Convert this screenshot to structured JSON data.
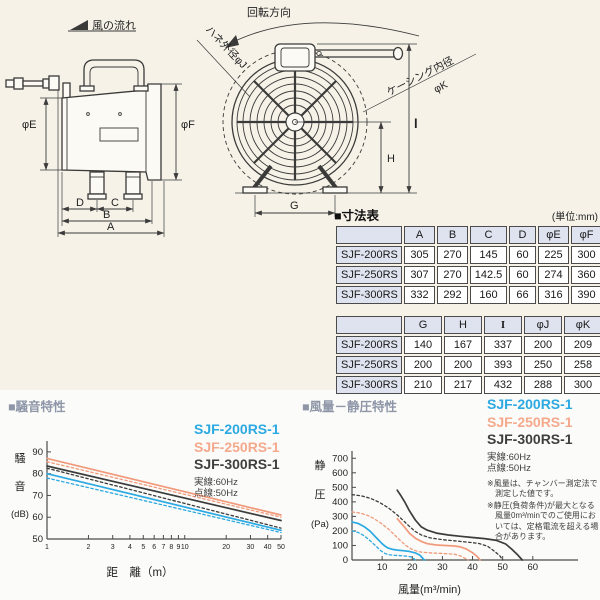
{
  "page": {
    "top_bg": "#f6f2e8",
    "bottom_bg": "#fbfbf9"
  },
  "drawings": {
    "side": {
      "flow": "風の流れ",
      "phiE": "φE",
      "phiF": "φF",
      "a": "A",
      "b": "B",
      "c": "C",
      "d": "D"
    },
    "front": {
      "rotation": "回転方向",
      "blade_dia": "ハネ外径φJ",
      "casing_dia": "ケーシング内径",
      "casing_dia2": "φK",
      "g": "G",
      "h": "H",
      "l": "l"
    }
  },
  "dim_table": {
    "title": "■寸法表",
    "unit": "(単位:mm)",
    "t1": {
      "headers": [
        "A",
        "B",
        "C",
        "D",
        "φE",
        "φF"
      ],
      "rows": [
        [
          "SJF-200RS",
          "305",
          "270",
          "145",
          "60",
          "225",
          "300"
        ],
        [
          "SJF-250RS",
          "307",
          "270",
          "142.5",
          "60",
          "274",
          "360"
        ],
        [
          "SJF-300RS",
          "332",
          "292",
          "160",
          "66",
          "316",
          "390"
        ]
      ]
    },
    "t2": {
      "headers": [
        "G",
        "H",
        "I",
        "φJ",
        "φK"
      ],
      "rows": [
        [
          "SJF-200RS",
          "140",
          "167",
          "337",
          "200",
          "209"
        ],
        [
          "SJF-250RS",
          "200",
          "200",
          "393",
          "250",
          "258"
        ],
        [
          "SJF-300RS",
          "210",
          "217",
          "432",
          "288",
          "300"
        ]
      ]
    }
  },
  "chart_data": [
    {
      "type": "line",
      "id": "noise",
      "title": "■騒音特性",
      "xlabel": "距　離（m）",
      "ylabel": "騒音(dB)",
      "ylabel_stack": [
        "騒",
        "音",
        "(dB)"
      ],
      "x_scale": "log",
      "xlim": [
        1,
        50
      ],
      "ylim": [
        50,
        95
      ],
      "x_ticks": [
        1,
        2,
        3,
        4,
        5,
        6,
        7,
        8,
        9,
        10,
        20,
        30,
        40,
        50
      ],
      "y_ticks": [
        50,
        60,
        70,
        80,
        90
      ],
      "grid": false,
      "legend_position": "top-right",
      "legend": [
        {
          "label": "SJF-200RS-1",
          "color": "#2ba9e2"
        },
        {
          "label": "SJF-250RS-1",
          "color": "#f5a98c"
        },
        {
          "label": "SJF-300RS-1",
          "color": "#3f3f3f"
        }
      ],
      "line_key": [
        "実線:60Hz",
        "点線:50Hz"
      ],
      "series": [
        {
          "name": "SJF-250RS-1 60Hz",
          "color": "#f19a7b",
          "dash": "solid",
          "x": [
            1,
            50
          ],
          "y": [
            87,
            61
          ]
        },
        {
          "name": "SJF-250RS-1 50Hz",
          "color": "#f19a7b",
          "dash": "dot",
          "x": [
            1,
            50
          ],
          "y": [
            85.5,
            60
          ]
        },
        {
          "name": "SJF-300RS-1 60Hz",
          "color": "#3c3c3c",
          "dash": "solid",
          "x": [
            1,
            50
          ],
          "y": [
            83.5,
            58.5
          ]
        },
        {
          "name": "SJF-300RS-1 50Hz",
          "color": "#3c3c3c",
          "dash": "dot",
          "x": [
            1,
            50
          ],
          "y": [
            82.5,
            55
          ]
        },
        {
          "name": "SJF-200RS-1 60Hz",
          "color": "#2ba9e2",
          "dash": "solid",
          "x": [
            1,
            50
          ],
          "y": [
            80,
            54
          ]
        },
        {
          "name": "SJF-200RS-1 50Hz",
          "color": "#2ba9e2",
          "dash": "dot",
          "x": [
            1,
            50
          ],
          "y": [
            78,
            53
          ]
        }
      ]
    },
    {
      "type": "line",
      "id": "pq",
      "title": "■風量－静圧特性",
      "xlabel": "風量(m³/min)",
      "ylabel": "静圧(Pa)",
      "ylabel_stack": [
        "静",
        "圧",
        "(Pa)"
      ],
      "x_scale": "linear",
      "xlim": [
        0,
        75
      ],
      "ylim": [
        0,
        750
      ],
      "x_ticks": [
        10,
        20,
        30,
        40,
        50,
        60
      ],
      "y_ticks": [
        0,
        100,
        200,
        300,
        400,
        500,
        600,
        700
      ],
      "grid": false,
      "legend_position": "top-right",
      "legend": [
        {
          "label": "SJF-200RS-1",
          "color": "#2ba9e2"
        },
        {
          "label": "SJF-250RS-1",
          "color": "#f5a98c"
        },
        {
          "label": "SJF-300RS-1",
          "color": "#3f3f3f"
        }
      ],
      "line_key": [
        "実線:60Hz",
        "点線:50Hz"
      ],
      "notes": [
        "※風量は、チャンバー測定法で測定した値です。",
        "※静圧(負荷条件)が最大となる風量0m³/minでのご使用においては、定格電流を超える場合があります。"
      ],
      "series": [
        {
          "name": "SJF-300RS-1 60Hz",
          "color": "#3c3c3c",
          "dash": "solid",
          "x": [
            15,
            16,
            17.5,
            19,
            21,
            23,
            25,
            28,
            32,
            36,
            40,
            44,
            48,
            51,
            53,
            55,
            56.5
          ],
          "y": [
            480,
            450,
            400,
            340,
            275,
            228,
            205,
            185,
            172,
            163,
            155,
            147,
            135,
            110,
            75,
            35,
            0
          ]
        },
        {
          "name": "SJF-300RS-1 50Hz",
          "color": "#3c3c3c",
          "dash": "dot",
          "x": [
            0,
            3,
            6,
            9,
            12,
            15,
            17,
            19,
            21,
            23,
            26,
            30,
            34,
            38,
            42,
            45,
            47,
            49,
            50
          ],
          "y": [
            450,
            442,
            425,
            398,
            360,
            310,
            272,
            232,
            196,
            172,
            152,
            140,
            132,
            124,
            114,
            95,
            65,
            30,
            0
          ]
        },
        {
          "name": "SJF-250RS-1 60Hz",
          "color": "#f19a7b",
          "dash": "solid",
          "x": [
            15,
            16,
            17.5,
            19,
            21,
            23,
            25,
            28,
            31,
            34,
            36,
            38,
            40,
            41.5,
            42.5
          ],
          "y": [
            285,
            260,
            225,
            185,
            150,
            128,
            112,
            103,
            100,
            96,
            90,
            75,
            50,
            25,
            0
          ]
        },
        {
          "name": "SJF-250RS-1 50Hz",
          "color": "#f19a7b",
          "dash": "dot",
          "x": [
            0,
            3,
            6,
            9,
            12,
            14,
            16,
            18,
            20,
            22,
            25,
            28,
            31,
            34,
            36,
            37.5,
            38.5
          ],
          "y": [
            330,
            322,
            300,
            263,
            215,
            175,
            135,
            98,
            72,
            57,
            50,
            47,
            44,
            40,
            28,
            12,
            0
          ]
        },
        {
          "name": "SJF-200RS-1 60Hz",
          "color": "#2ba9e2",
          "dash": "solid",
          "x": [
            0,
            2,
            4,
            6,
            8,
            10,
            11,
            12,
            13.5,
            15,
            17,
            19,
            21,
            22.5,
            24
          ],
          "y": [
            262,
            252,
            230,
            198,
            155,
            112,
            95,
            82,
            73,
            68,
            64,
            59,
            49,
            34,
            0
          ]
        },
        {
          "name": "SJF-200RS-1 50Hz",
          "color": "#2ba9e2",
          "dash": "dot",
          "x": [
            0,
            2,
            4,
            6,
            8,
            9.5,
            11,
            12,
            14,
            16,
            18,
            19.5,
            20.5,
            21
          ],
          "y": [
            200,
            190,
            167,
            133,
            95,
            65,
            45,
            37,
            32,
            30,
            27,
            22,
            10,
            0
          ]
        }
      ]
    }
  ]
}
